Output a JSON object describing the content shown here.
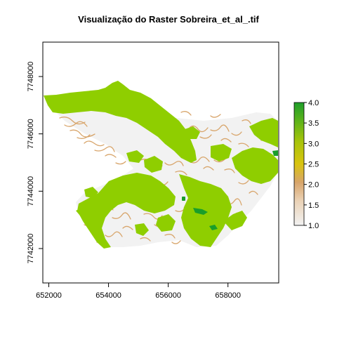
{
  "title": "Visualização do Raster Sobreira_et_al_.tif",
  "map": {
    "x_ticks": [
      "652000",
      "654000",
      "656000",
      "658000"
    ],
    "y_ticks": [
      "7742000",
      "7744000",
      "7746000",
      "7748000"
    ],
    "x_values": [
      652000,
      654000,
      656000,
      658000
    ],
    "y_values": [
      7742000,
      7744000,
      7746000,
      7748000
    ],
    "xlim": [
      651800,
      659700
    ],
    "ylim": [
      7740800,
      7749200
    ]
  },
  "legend": {
    "ticks": [
      "1.0",
      "1.5",
      "2.0",
      "2.5",
      "3.0",
      "3.5",
      "4.0"
    ],
    "values": [
      1.0,
      1.5,
      2.0,
      2.5,
      3.0,
      3.5,
      4.0
    ],
    "range": [
      1.0,
      4.0
    ],
    "colors": [
      "#f2f2f2",
      "#e9c9a3",
      "#d8a56b",
      "#d9c40f",
      "#a8c40a",
      "#6cb51a",
      "#1e9e2a"
    ]
  },
  "raster_colors": {
    "class1": "#f2f2f2",
    "class2": "#d8a56b",
    "class3": "#8fce00",
    "class4": "#1a9e2a"
  }
}
